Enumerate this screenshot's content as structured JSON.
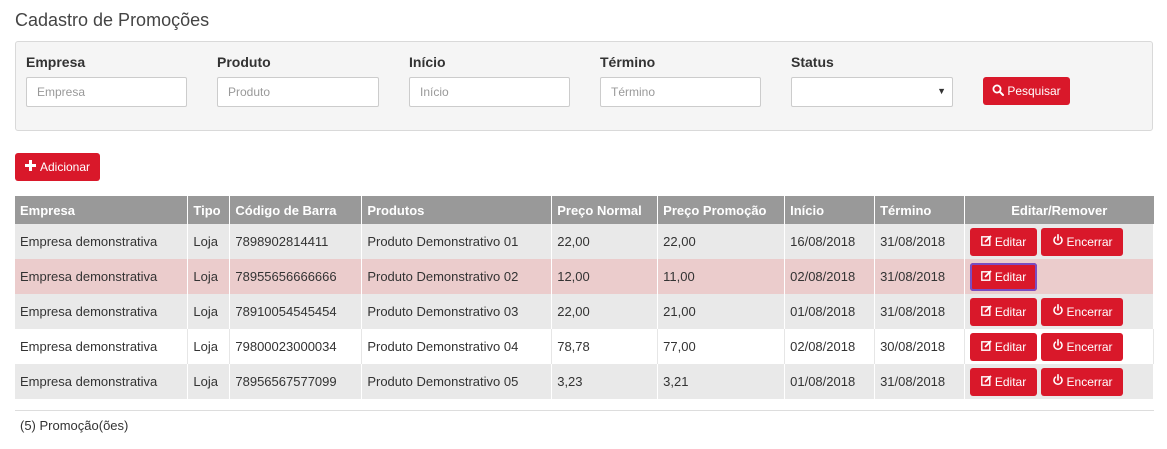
{
  "page": {
    "title": "Cadastro de Promoções"
  },
  "filters": {
    "empresa": {
      "label": "Empresa",
      "placeholder": "Empresa",
      "value": ""
    },
    "produto": {
      "label": "Produto",
      "placeholder": "Produto",
      "value": ""
    },
    "inicio": {
      "label": "Início",
      "placeholder": "Início",
      "value": ""
    },
    "termino": {
      "label": "Término",
      "placeholder": "Término",
      "value": ""
    },
    "status": {
      "label": "Status",
      "selected": ""
    },
    "search_label": "Pesquisar"
  },
  "toolbar": {
    "add_label": "Adicionar"
  },
  "table": {
    "columns": [
      "Empresa",
      "Tipo",
      "Código de Barra",
      "Produtos",
      "Preço Normal",
      "Preço Promoção",
      "Início",
      "Término",
      "Editar/Remover"
    ],
    "edit_label": "Editar",
    "end_label": "Encerrar",
    "rows": [
      {
        "empresa": "Empresa demonstrativa",
        "tipo": "Loja",
        "codigo": "7898902814411",
        "produto": "Produto Demonstrativo 01",
        "preco_normal": "22,00",
        "preco_promocao": "22,00",
        "inicio": "16/08/2018",
        "termino": "31/08/2018",
        "encerrar": true
      },
      {
        "empresa": "Empresa demonstrativa",
        "tipo": "Loja",
        "codigo": "78955656666666",
        "produto": "Produto Demonstrativo 02",
        "preco_normal": "12,00",
        "preco_promocao": "11,00",
        "inicio": "02/08/2018",
        "termino": "31/08/2018",
        "encerrar": false
      },
      {
        "empresa": "Empresa demonstrativa",
        "tipo": "Loja",
        "codigo": "78910054545454",
        "produto": "Produto Demonstrativo 03",
        "preco_normal": "22,00",
        "preco_promocao": "21,00",
        "inicio": "01/08/2018",
        "termino": "31/08/2018",
        "encerrar": true
      },
      {
        "empresa": "Empresa demonstrativa",
        "tipo": "Loja",
        "codigo": "79800023000034",
        "produto": "Produto Demonstrativo 04",
        "preco_normal": "78,78",
        "preco_promocao": "77,00",
        "inicio": "02/08/2018",
        "termino": "30/08/2018",
        "encerrar": true
      },
      {
        "empresa": "Empresa demonstrativa",
        "tipo": "Loja",
        "codigo": "78956567577099",
        "produto": "Produto Demonstrativo 05",
        "preco_normal": "3,23",
        "preco_promocao": "3,21",
        "inicio": "01/08/2018",
        "termino": "31/08/2018",
        "encerrar": true
      }
    ]
  },
  "footer": {
    "count_text": "(5) Promoção(ões)"
  },
  "icons": {
    "search": "search-icon",
    "add": "plus-icon",
    "edit": "edit-icon",
    "end": "power-icon"
  },
  "colors": {
    "accent": "#d9182a",
    "header": "#999999",
    "selected_row": "#ebcccc"
  }
}
